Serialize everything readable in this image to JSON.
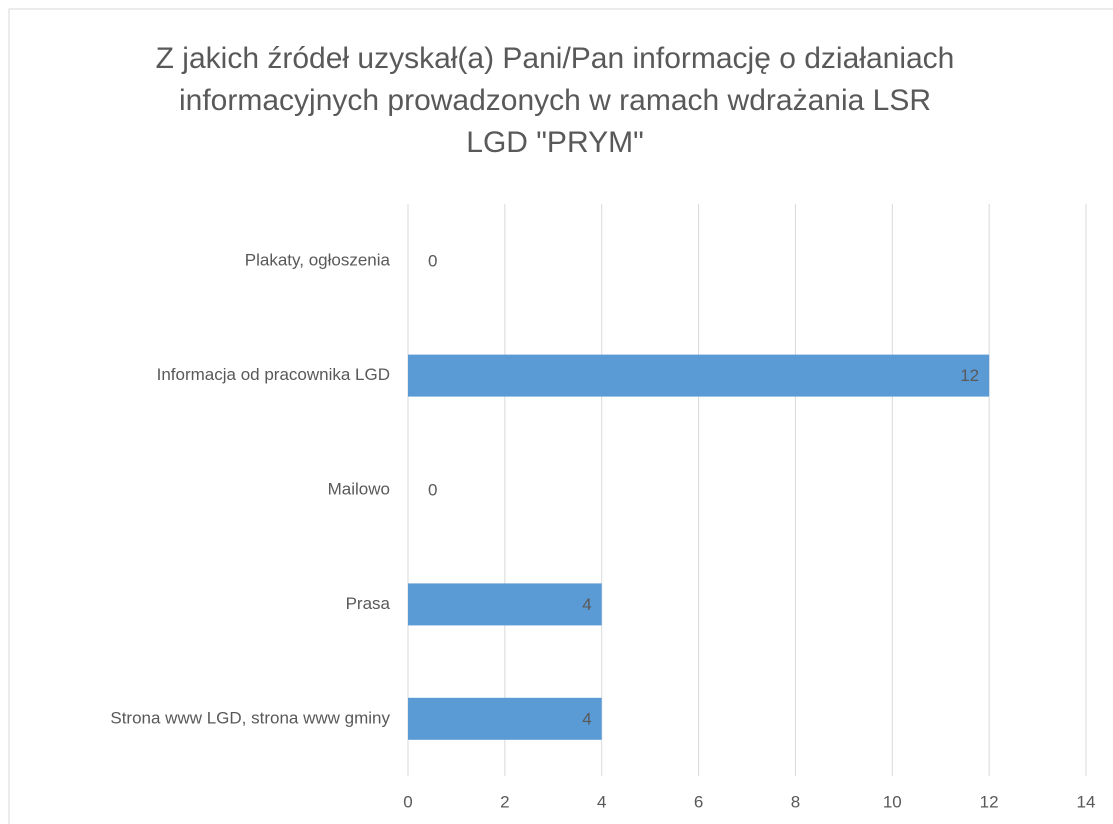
{
  "chart_data": {
    "type": "bar",
    "orientation": "horizontal",
    "title": "Z jakich źródeł uzyskał(a) Pani/Pan informację o działaniach informacyjnych prowadzonych w ramach wdrażania LSR LGD \"PRYM\"",
    "categories": [
      "Plakaty, ogłoszenia",
      "Informacja od pracownika LGD",
      "Mailowo",
      "Prasa",
      "Strona www LGD, strona www gminy"
    ],
    "values": [
      0,
      12,
      0,
      4,
      4
    ],
    "color": "#5b9bd5",
    "xlim": [
      0,
      14
    ],
    "xticks": [
      0,
      2,
      4,
      6,
      8,
      10,
      12,
      14
    ],
    "grid": true
  }
}
